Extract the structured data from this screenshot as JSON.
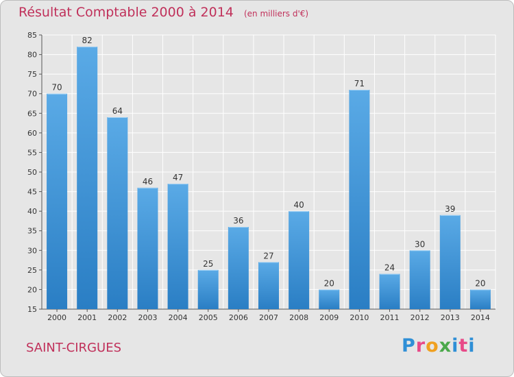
{
  "header": {
    "title": "Résultat Comptable 2000 à 2014",
    "unit": "(en milliers d'€)"
  },
  "footer": {
    "commune": "SAINT-CIRGUES",
    "logo_text": "Proxiti"
  },
  "colors": {
    "bar_top": "#5aaae6",
    "bar_bottom": "#2a7ec4",
    "title": "#c0305a",
    "grid": "#ffffff",
    "plot_bg": "#e6e6e6"
  },
  "chart_data": {
    "type": "bar",
    "categories": [
      "2000",
      "2001",
      "2002",
      "2003",
      "2004",
      "2005",
      "2006",
      "2007",
      "2008",
      "2009",
      "2010",
      "2011",
      "2012",
      "2013",
      "2014"
    ],
    "values": [
      70,
      82,
      64,
      46,
      47,
      25,
      36,
      27,
      40,
      20,
      71,
      24,
      30,
      39,
      20
    ],
    "ylim": [
      15,
      85
    ],
    "yticks": [
      15,
      20,
      25,
      30,
      35,
      40,
      45,
      50,
      55,
      60,
      65,
      70,
      75,
      80,
      85
    ],
    "grid": true,
    "legend": "none"
  }
}
